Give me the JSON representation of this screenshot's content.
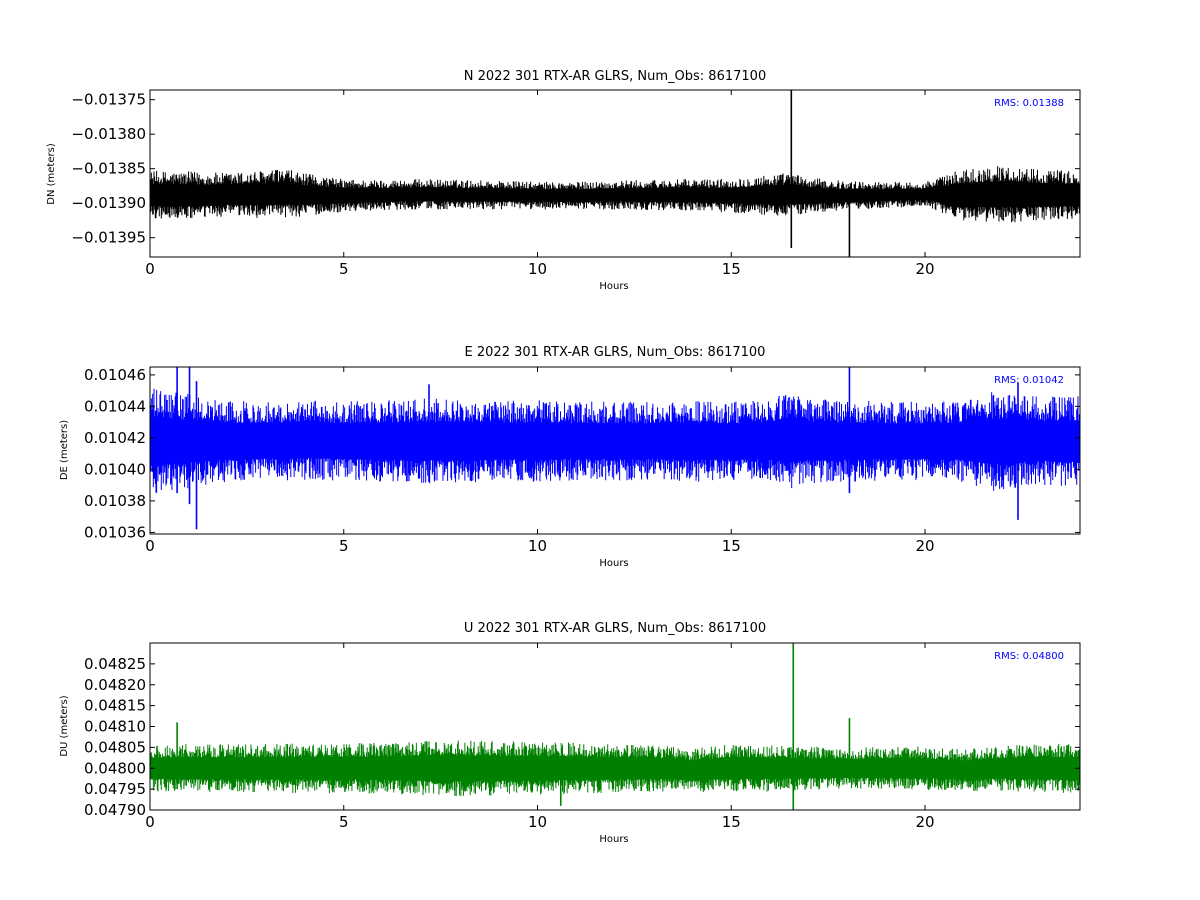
{
  "chart_data": [
    {
      "type": "line",
      "title": "N 2022 301 RTX-AR  GLRS, Num_Obs: 8617100",
      "xlabel": "Hours",
      "ylabel": "DN (meters)",
      "xlim": [
        0,
        24
      ],
      "ylim": [
        -0.013978,
        -0.013736
      ],
      "xticks": [
        0,
        5,
        10,
        15,
        20
      ],
      "xtick_labels": [
        "0",
        "5",
        "10",
        "15",
        "20"
      ],
      "yticks": [
        -0.01395,
        -0.0139,
        -0.01385,
        -0.0138,
        -0.01375
      ],
      "ytick_labels": [
        "−0.01395",
        "−0.01390",
        "−0.01385",
        "−0.01380",
        "−0.01375"
      ],
      "annotation": "RMS:  0.01388",
      "color": "#000000",
      "series": [
        {
          "x": [
            0,
            1,
            2,
            3,
            3.5,
            4,
            5,
            6,
            7,
            8,
            9,
            10,
            11,
            12,
            13,
            14,
            15,
            16,
            16.55,
            17,
            18,
            18.05,
            19,
            20,
            21,
            22,
            23,
            24
          ],
          "mean": [
            -0.013888,
            -0.013889,
            -0.013888,
            -0.013887,
            -0.013886,
            -0.013888,
            -0.013889,
            -0.013888,
            -0.013887,
            -0.013888,
            -0.013888,
            -0.013889,
            -0.013889,
            -0.013888,
            -0.013888,
            -0.013888,
            -0.013889,
            -0.013888,
            -0.013887,
            -0.013889,
            -0.013889,
            -0.013889,
            -0.013888,
            -0.013887,
            -0.013888,
            -0.013887,
            -0.013888,
            -0.013888
          ],
          "band": [
            3.5e-05,
            3.5e-05,
            3.2e-05,
            3.5e-05,
            3.6e-05,
            3.1e-05,
            2.4e-05,
            2.2e-05,
            2.2e-05,
            2.2e-05,
            2.1e-05,
            2e-05,
            2e-05,
            2.1e-05,
            2.2e-05,
            2.3e-05,
            2.5e-05,
            3e-05,
            3.2e-05,
            2.6e-05,
            2.1e-05,
            2.1e-05,
            1.9e-05,
            1.8e-05,
            3.8e-05,
            4.2e-05,
            3.8e-05,
            3.4e-05
          ],
          "spikes": [
            [
              16.55,
              -0.013965,
              -0.013736
            ],
            [
              18.05,
              -0.013978,
              -0.01389
            ]
          ]
        }
      ]
    },
    {
      "type": "line",
      "title": "E 2022 301 RTX-AR  GLRS, Num_Obs: 8617100",
      "xlabel": "Hours",
      "ylabel": "DE (meters)",
      "xlim": [
        0,
        24
      ],
      "ylim": [
        0.010359,
        0.010465
      ],
      "xticks": [
        0,
        5,
        10,
        15,
        20
      ],
      "xtick_labels": [
        "0",
        "5",
        "10",
        "15",
        "20"
      ],
      "yticks": [
        0.01036,
        0.01038,
        0.0104,
        0.01042,
        0.01044,
        0.01046
      ],
      "ytick_labels": [
        "0.01036",
        "0.01038",
        "0.01040",
        "0.01042",
        "0.01044",
        "0.01046"
      ],
      "annotation": "RMS:  0.01042",
      "color": "#0000ff",
      "series": [
        {
          "x": [
            0,
            0.5,
            1,
            1.5,
            2,
            3,
            4,
            5,
            6,
            7,
            8,
            9,
            10,
            11,
            12,
            13,
            14,
            15,
            16,
            16.5,
            17,
            18,
            19,
            20,
            21,
            21.8,
            22.5,
            23,
            24
          ],
          "mean": [
            0.010418,
            0.010418,
            0.010418,
            0.010418,
            0.010418,
            0.010418,
            0.010419,
            0.010418,
            0.010418,
            0.010418,
            0.010418,
            0.010418,
            0.010418,
            0.010418,
            0.010418,
            0.010418,
            0.010418,
            0.010418,
            0.010418,
            0.010419,
            0.010418,
            0.010418,
            0.010418,
            0.010418,
            0.010418,
            0.010418,
            0.010418,
            0.010418,
            0.010418
          ],
          "band": [
            3.4e-05,
            3.2e-05,
            3e-05,
            2.8e-05,
            2.6e-05,
            2.5e-05,
            2.6e-05,
            2.5e-05,
            2.6e-05,
            2.7e-05,
            2.7e-05,
            2.6e-05,
            2.6e-05,
            2.5e-05,
            2.5e-05,
            2.5e-05,
            2.6e-05,
            2.5e-05,
            2.6e-05,
            3.2e-05,
            2.7e-05,
            2.6e-05,
            2.5e-05,
            2.5e-05,
            2.6e-05,
            3.2e-05,
            2.9e-05,
            2.8e-05,
            2.9e-05
          ],
          "spikes": [
            [
              0.7,
              0.010385,
              0.010465
            ],
            [
              1.02,
              0.010378,
              0.010465
            ],
            [
              1.2,
              0.010362,
              0.010456
            ],
            [
              18.05,
              0.010385,
              0.010465
            ],
            [
              22.4,
              0.010368,
              0.010455
            ],
            [
              7.2,
              0.010392,
              0.010454
            ]
          ]
        }
      ]
    },
    {
      "type": "line",
      "title": "U 2022 301 RTX-AR  GLRS, Num_Obs: 8617100",
      "xlabel": "Hours",
      "ylabel": "DU (meters)",
      "xlim": [
        0,
        24
      ],
      "ylim": [
        0.0479,
        0.0483
      ],
      "xticks": [
        0,
        5,
        10,
        15,
        20
      ],
      "xtick_labels": [
        "0",
        "5",
        "10",
        "15",
        "20"
      ],
      "yticks": [
        0.0479,
        0.04795,
        0.048,
        0.04805,
        0.0481,
        0.04815,
        0.0482,
        0.04825
      ],
      "ytick_labels": [
        "0.04790",
        "0.04795",
        "0.04800",
        "0.04805",
        "0.04810",
        "0.04815",
        "0.04820",
        "0.04825"
      ],
      "annotation": "RMS:  0.04800",
      "color": "#008000",
      "series": [
        {
          "x": [
            0,
            1,
            2,
            3,
            4,
            5,
            6,
            7,
            8,
            9,
            10,
            11,
            12,
            13,
            14,
            15,
            16,
            16.6,
            17,
            18,
            19,
            20,
            21,
            22,
            23,
            24
          ],
          "mean": [
            0.048,
            0.048,
            0.048,
            0.048,
            0.048,
            0.048,
            0.048,
            0.048,
            0.048,
            0.048,
            0.048,
            0.048,
            0.048,
            0.048,
            0.047995,
            0.048,
            0.048,
            0.048,
            0.048,
            0.048,
            0.048,
            0.048,
            0.047995,
            0.048,
            0.048,
            0.048
          ],
          "band": [
            5.5e-05,
            5.8e-05,
            5.8e-05,
            5.8e-05,
            6e-05,
            6e-05,
            6.2e-05,
            6.5e-05,
            6.8e-05,
            6.6e-05,
            6.4e-05,
            6.2e-05,
            5.8e-05,
            5.6e-05,
            5.2e-05,
            5.8e-05,
            5.6e-05,
            5.4e-05,
            5.2e-05,
            5e-05,
            5.2e-05,
            5.2e-05,
            5e-05,
            5.5e-05,
            5.8e-05,
            6e-05
          ],
          "spikes": [
            [
              16.6,
              0.0479,
              0.0483
            ],
            [
              18.05,
              0.047965,
              0.04812
            ],
            [
              0.7,
              0.04795,
              0.04811
            ],
            [
              10.6,
              0.04791,
              0.048
            ]
          ]
        }
      ]
    }
  ]
}
